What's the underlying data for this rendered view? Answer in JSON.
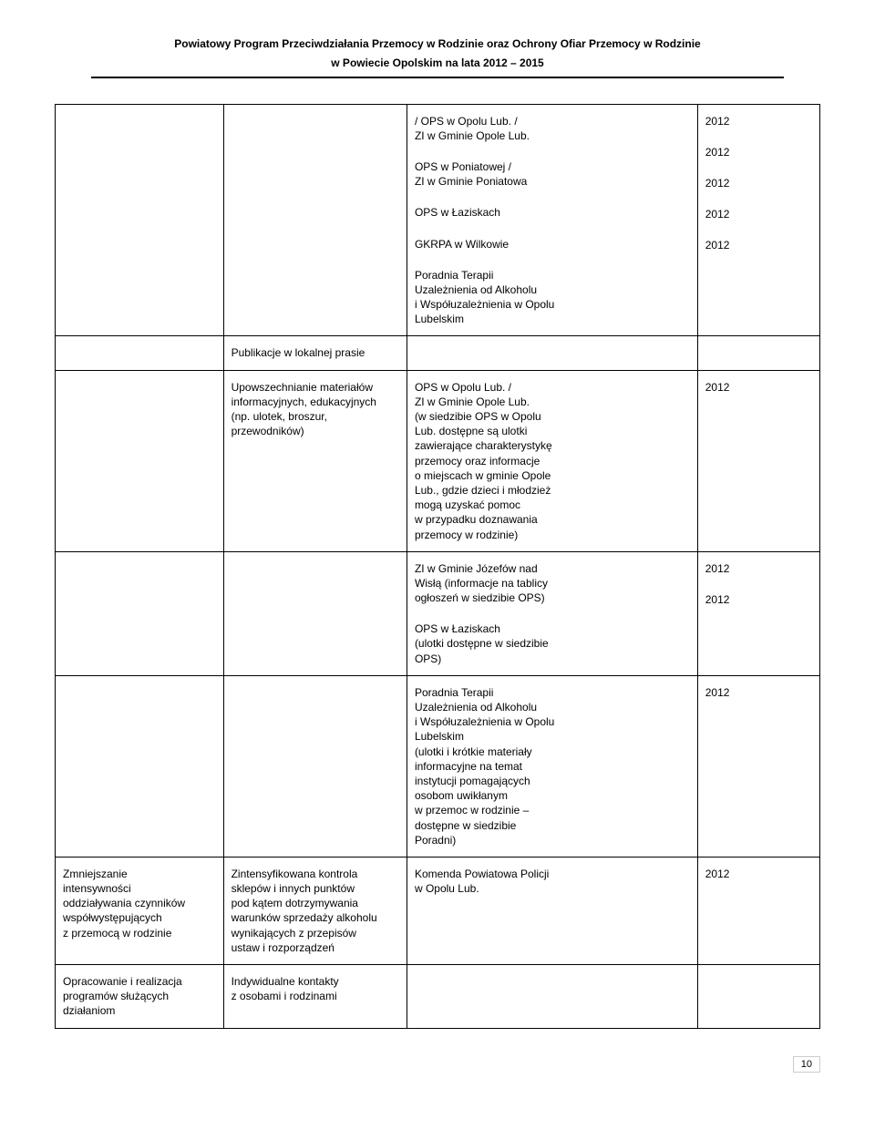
{
  "header": {
    "line1": "Powiatowy Program Przeciwdziałania Przemocy w Rodzinie oraz Ochrony Ofiar Przemocy w Rodzinie",
    "line2": "w Powiecie Opolskim na lata 2012 – 2015"
  },
  "page_number": "10",
  "rows": [
    {
      "c1": "",
      "c2": "",
      "c3_blocks": [
        "/ OPS w Opolu Lub. /\nZI w Gminie Opole Lub.",
        "OPS w Poniatowej /\nZI w Gminie Poniatowa",
        "OPS w Łaziskach",
        "GKRPA w Wilkowie",
        "Poradnia Terapii\nUzależnienia od Alkoholu\ni Współuzależnienia w Opolu\nLubelskim"
      ],
      "c4_blocks": [
        "2012",
        "2012",
        "2012",
        "2012",
        "2012"
      ]
    },
    {
      "c1": "",
      "c2": "Publikacje w lokalnej prasie",
      "c3_blocks": [],
      "c4_blocks": []
    },
    {
      "c1": "",
      "c2": "Upowszechnianie materiałów\ninformacyjnych, edukacyjnych\n(np. ulotek, broszur,\nprzewodników)",
      "c3_blocks": [
        "OPS w Opolu Lub. /\nZI w Gminie Opole Lub.\n(w siedzibie OPS w Opolu\nLub. dostępne są ulotki\nzawierające charakterystykę\nprzemocy oraz informacje\no miejscach w gminie Opole\nLub., gdzie dzieci i młodzież\nmogą uzyskać pomoc\nw przypadku doznawania\nprzemocy w rodzinie)"
      ],
      "c4_blocks": [
        "2012"
      ]
    },
    {
      "c1": "",
      "c2": "",
      "c3_blocks": [
        "ZI w Gminie Józefów nad\nWisłą (informacje na tablicy\nogłoszeń w siedzibie OPS)",
        "OPS w Łaziskach\n(ulotki dostępne w siedzibie\nOPS)"
      ],
      "c4_blocks": [
        "2012",
        "2012"
      ]
    },
    {
      "c1": "",
      "c2": "",
      "c3_blocks": [
        "Poradnia Terapii\nUzależnienia od Alkoholu\ni Współuzależnienia w Opolu\nLubelskim\n(ulotki i krótkie materiały\ninformacyjne na temat\ninstytucji pomagających\nosobom uwikłanym\nw przemoc w rodzinie –\ndostępne w siedzibie\nPoradni)"
      ],
      "c4_blocks": [
        "2012"
      ]
    },
    {
      "c1": "Zmniejszanie\nintensywności\noddziaływania czynników\nwspółwystępujących\nz przemocą w rodzinie",
      "c2": "Zintensyfikowana kontrola\nsklepów i innych punktów\npod kątem dotrzymywania\nwarunków sprzedaży alkoholu\nwynikających z przepisów\nustaw i rozporządzeń",
      "c3_blocks": [
        "Komenda Powiatowa Policji\nw Opolu Lub."
      ],
      "c4_blocks": [
        "2012"
      ]
    },
    {
      "c1": "Opracowanie i realizacja\nprogramów służących\ndziałaniom",
      "c2": "Indywidualne kontakty\nz osobami i rodzinami",
      "c3_blocks": [],
      "c4_blocks": []
    }
  ]
}
